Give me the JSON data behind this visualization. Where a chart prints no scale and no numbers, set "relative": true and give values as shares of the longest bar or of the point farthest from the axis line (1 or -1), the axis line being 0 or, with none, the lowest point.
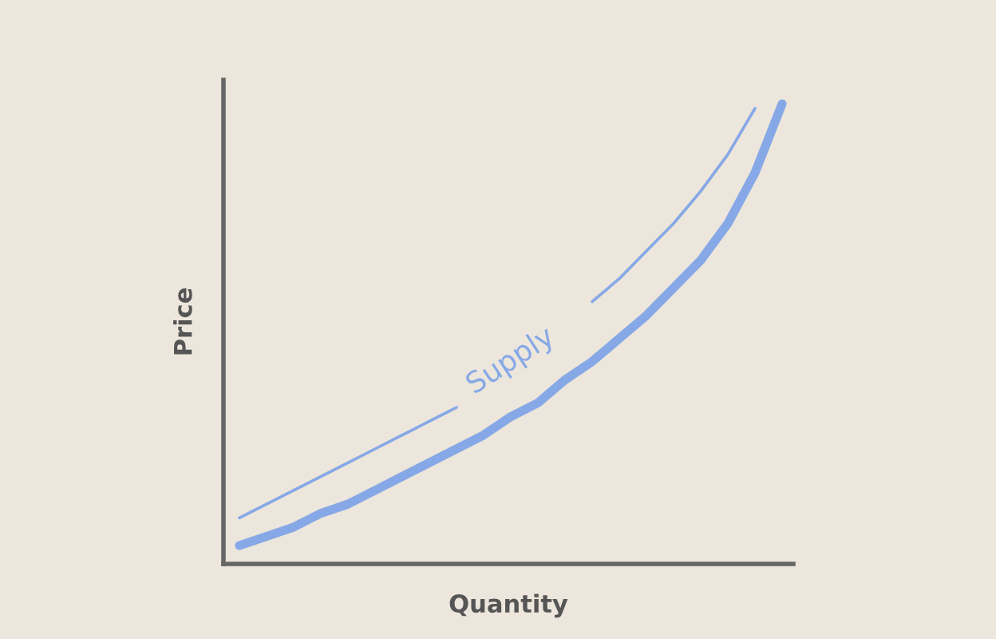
{
  "chart_data": {
    "type": "line",
    "relative": true,
    "xlabel": "Quantity",
    "ylabel": "Price",
    "categories": [
      null,
      null,
      null,
      null,
      null,
      null,
      null,
      null,
      null,
      null,
      null,
      null,
      null,
      null,
      null,
      null,
      null,
      null,
      null,
      null,
      null
    ],
    "series": [
      {
        "name": "Supply",
        "color": "#86a8e6",
        "values": [
          0.04,
          0.06,
          0.08,
          0.11,
          0.13,
          0.16,
          0.19,
          0.22,
          0.25,
          0.28,
          0.32,
          0.35,
          0.4,
          0.44,
          0.49,
          0.54,
          0.6,
          0.66,
          0.74,
          0.85,
          1.0
        ]
      },
      {
        "color": "#86a8e6",
        "values": [
          0.1,
          0.13,
          0.16,
          0.19,
          0.22,
          0.25,
          0.28,
          0.31,
          0.34,
          null,
          null,
          null,
          null,
          0.57,
          0.62,
          0.68,
          0.74,
          0.81,
          0.89,
          0.99,
          null
        ]
      }
    ],
    "grid": false,
    "legend": false,
    "line_style": "solid",
    "marker": "none"
  }
}
